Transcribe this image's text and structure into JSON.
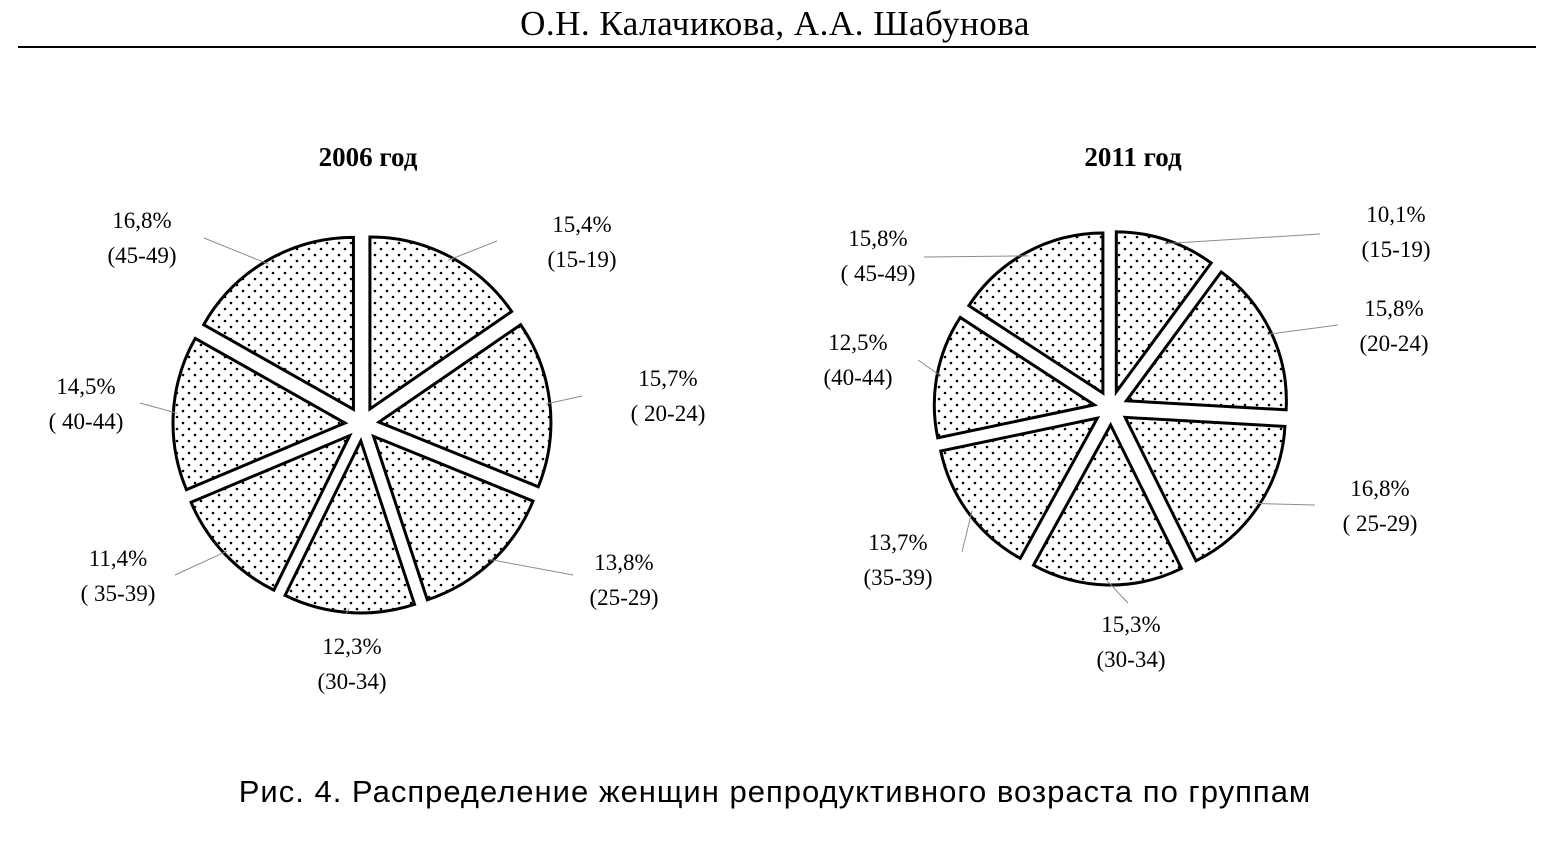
{
  "header": {
    "authors": "О.Н. Калачикова, А.А. Шабунова"
  },
  "caption": "Рис. 4. Распределение женщин репродуктивного возраста по группам",
  "chart_data": [
    {
      "type": "pie",
      "title": "2006 год",
      "slices": [
        {
          "value": 15.4,
          "pct_label": "15,4%",
          "group": "(15-19)"
        },
        {
          "value": 15.7,
          "pct_label": "15,7%",
          "group": "( 20-24)"
        },
        {
          "value": 13.8,
          "pct_label": "13,8%",
          "group": "(25-29)"
        },
        {
          "value": 12.3,
          "pct_label": "12,3%",
          "group": "(30-34)"
        },
        {
          "value": 11.4,
          "pct_label": "11,4%",
          "group": "( 35-39)"
        },
        {
          "value": 14.5,
          "pct_label": "14,5%",
          "group": "( 40-44)"
        },
        {
          "value": 16.8,
          "pct_label": "16,8%",
          "group": "(45-49)"
        }
      ],
      "fill": "dotted",
      "exploded": true
    },
    {
      "type": "pie",
      "title": "2011 год",
      "slices": [
        {
          "value": 10.1,
          "pct_label": "10,1%",
          "group": "(15-19)"
        },
        {
          "value": 15.8,
          "pct_label": "15,8%",
          "group": "(20-24)"
        },
        {
          "value": 16.8,
          "pct_label": "16,8%",
          "group": "( 25-29)"
        },
        {
          "value": 15.3,
          "pct_label": "15,3%",
          "group": "(30-34)"
        },
        {
          "value": 13.7,
          "pct_label": "13,7%",
          "group": "(35-39)"
        },
        {
          "value": 12.5,
          "pct_label": "12,5%",
          "group": "(40-44)"
        },
        {
          "value": 15.8,
          "pct_label": "15,8%",
          "group": "( 45-49)"
        }
      ],
      "fill": "dotted",
      "exploded": true
    }
  ]
}
